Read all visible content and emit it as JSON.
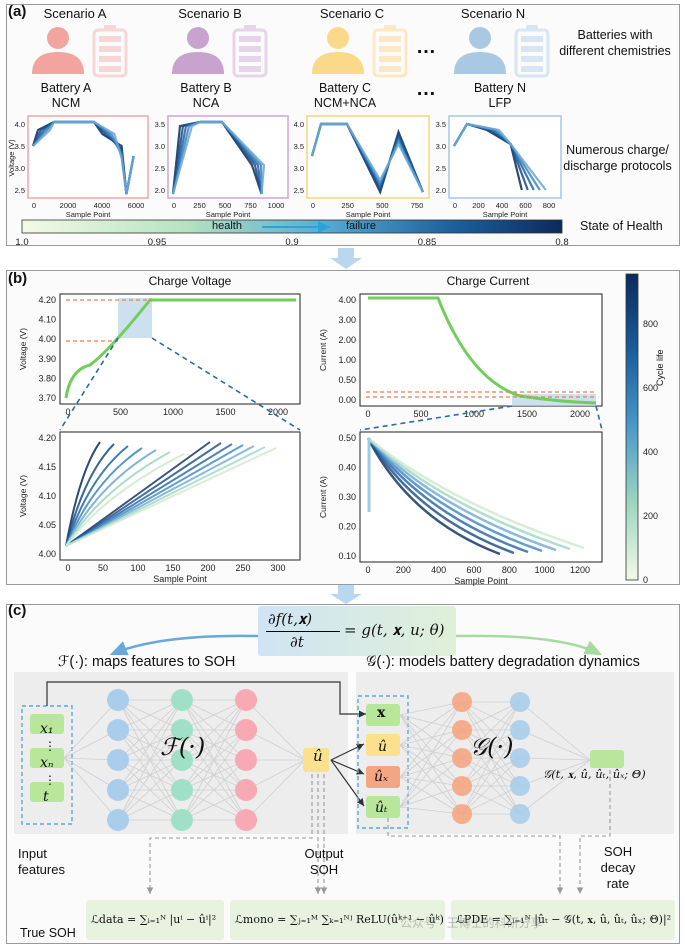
{
  "panel_a": {
    "label": "(a)",
    "scenarios": [
      "Scenario A",
      "Scenario B",
      "Scenario C",
      "Scenario N"
    ],
    "ellipsis": "…",
    "battery_names": [
      "Battery A",
      "Battery B",
      "Battery C",
      "Battery N"
    ],
    "chemistries": [
      "NCM",
      "NCA",
      "NCM+NCA",
      "LFP"
    ],
    "person_colors": [
      "#f2a59f",
      "#c9a3cf",
      "#fbd98a",
      "#a9c8e3"
    ],
    "battery_colors": [
      "#f6d7d5",
      "#e6d5ea",
      "#fde8c5",
      "#d7e6f2"
    ],
    "frame_colors": [
      "#f0a8a8",
      "#d0a6d8",
      "#f5d67a",
      "#a8c7e4"
    ],
    "right_label_1": "Batteries with different chemistries",
    "right_label_2": "Numerous charge/ discharge protocols",
    "right_label_3": "State of Health",
    "y_axis_label": "Voltage (V)",
    "x_axis_label": "Sample Point",
    "plot_a_y_ticks": [
      "4.0",
      "3.5",
      "3.0",
      "2.5"
    ],
    "plot_a_x_ticks": [
      "0",
      "2000",
      "4000",
      "6000"
    ],
    "plot_b_y_ticks": [
      "3.5",
      "3.0",
      "2.5",
      "2.0"
    ],
    "plot_b_x_ticks": [
      "0",
      "250",
      "500",
      "750",
      "1000"
    ],
    "plot_c_y_ticks": [
      "4.0",
      "3.5",
      "3.0",
      "2.5"
    ],
    "plot_c_x_ticks": [
      "0",
      "250",
      "500",
      "750"
    ],
    "plot_n_y_ticks": [
      "3.5",
      "3.0",
      "2.5",
      "2.0"
    ],
    "plot_n_x_ticks": [
      "0",
      "200",
      "400",
      "600",
      "800"
    ],
    "soh_ticks": [
      "1.0",
      "0.95",
      "0.9",
      "0.85",
      "0.8"
    ],
    "soh_health": "health",
    "soh_failure": "failure"
  },
  "panel_b": {
    "label": "(b)",
    "charge_voltage_title": "Charge Voltage",
    "charge_current_title": "Charge Current",
    "voltage_label": "Voltage (V)",
    "current_label": "Current (A)",
    "sample_point": "Sample Point",
    "cycle_life_label": "Cycle life",
    "cv_y_ticks": [
      "4.20",
      "4.10",
      "4.00",
      "3.90",
      "3.80",
      "3.70"
    ],
    "cv_x_ticks": [
      "0",
      "500",
      "1000",
      "1500",
      "2000"
    ],
    "cc_y_ticks": [
      "4.00",
      "3.00",
      "2.00",
      "1.00",
      "0.50",
      "0.00"
    ],
    "cc_x_ticks": [
      "0",
      "500",
      "1000",
      "1500",
      "2000"
    ],
    "zv_y_ticks": [
      "4.20",
      "4.15",
      "4.10",
      "4.05",
      "4.00"
    ],
    "zv_x_ticks": [
      "0",
      "50",
      "100",
      "150",
      "200",
      "250",
      "300"
    ],
    "zc_y_ticks": [
      "0.50",
      "0.40",
      "0.30",
      "0.20",
      "0.10"
    ],
    "zc_x_ticks": [
      "0",
      "200",
      "400",
      "600",
      "800",
      "1000",
      "1200"
    ],
    "colorbar_ticks": [
      "800",
      "600",
      "400",
      "200",
      "0"
    ],
    "colorbar_colors": [
      "#0b2a5c",
      "#1a5c9a",
      "#4a9ac8",
      "#9ed6c0",
      "#f2f9e6"
    ]
  },
  "panel_c": {
    "label": "(c)",
    "equation_lhs_num": "∂f(t,𝐱)",
    "equation_lhs_den": "∂t",
    "equation_rhs": "= g(t, 𝐱, u; θ)",
    "f_caption": "ℱ(·): maps features to SOH",
    "g_caption": "𝒢(·): models battery degradation dynamics",
    "f_net_label": "ℱ(·)",
    "g_net_label": "𝒢(·)",
    "inputs": [
      "x₁",
      "⋮",
      "xₙ",
      "⋮",
      "t"
    ],
    "output_node": "û",
    "g_inputs": [
      "𝐱",
      "û",
      "ûₓ",
      "ûₜ"
    ],
    "g_output_text": "𝒢(t, 𝐱, û, ûₜ, ûₓ; Θ)",
    "input_features": "Input features",
    "output_soh": "Output SOH",
    "soh_decay_rate": "SOH decay rate",
    "true_soh": "True SOH",
    "loss_data": "ℒdata = ∑ᵢ₌₁ᴺ |uⁱ − ûⁱ|²",
    "loss_mono": "ℒmono = ∑ⱼ₌₁ᴹ ∑ₖ₌₁ᴺʲ ReLU(ûᵏ⁺¹ − ûᵏ)",
    "loss_pde": "ℒPDE = ∑ᵢ₌₁ᴺ |ûₜ − 𝒢(t, 𝐱, û, ûₜ, ûₓ; Θ)|²",
    "watermark": "公众号 · 王博士的科研分享",
    "node_colors": {
      "blue": "#a9cdea",
      "green": "#9fe0c6",
      "red": "#f7a9b4",
      "yellow": "#fbe08d",
      "orange": "#f4a582",
      "lightgreen": "#b8e69a"
    }
  }
}
